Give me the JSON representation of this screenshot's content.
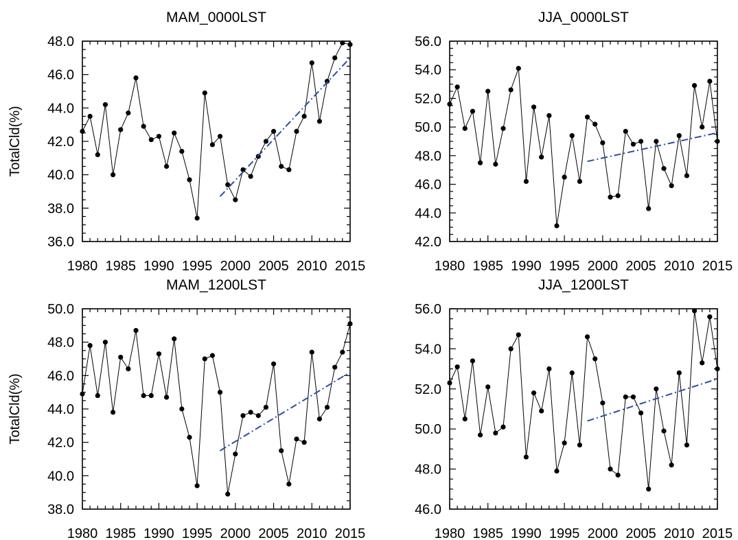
{
  "chart_data": [
    {
      "type": "line",
      "title": "MAM_0000LST",
      "xlabel": "",
      "ylabel": "TotalCld(%)",
      "xlim": [
        1980,
        2015
      ],
      "ylim": [
        36.0,
        48.0
      ],
      "x_ticks": [
        "1980",
        "1985",
        "1990",
        "1995",
        "2000",
        "2005",
        "2010",
        "2015"
      ],
      "y_ticks": [
        "36.0",
        "38.0",
        "40.0",
        "42.0",
        "44.0",
        "46.0",
        "48.0"
      ],
      "line_color": "#000000",
      "trend_color": "#2b4ea0",
      "series": [
        {
          "x": [
            1980,
            1981,
            1982,
            1983,
            1984,
            1985,
            1986,
            1987,
            1988,
            1989,
            1990,
            1991,
            1992,
            1993,
            1994,
            1995,
            1996,
            1997,
            1998,
            1999,
            2000,
            2001,
            2002,
            2003,
            2004,
            2005,
            2006,
            2007,
            2008,
            2009,
            2010,
            2011,
            2012,
            2013,
            2014,
            2015
          ],
          "values": [
            42.6,
            43.5,
            41.2,
            44.2,
            40.0,
            42.7,
            43.7,
            45.8,
            42.9,
            42.1,
            42.3,
            40.5,
            42.5,
            41.4,
            39.7,
            37.4,
            44.9,
            41.8,
            42.3,
            39.4,
            38.5,
            40.3,
            39.9,
            41.1,
            42.0,
            42.6,
            40.5,
            40.3,
            42.6,
            43.5,
            46.7,
            43.2,
            45.6,
            47.0,
            47.9,
            47.8
          ]
        }
      ],
      "trend": {
        "x": [
          1998,
          2015
        ],
        "values": [
          38.7,
          47.0
        ]
      }
    },
    {
      "type": "line",
      "title": "JJA_0000LST",
      "xlabel": "",
      "ylabel": "",
      "xlim": [
        1980,
        2015
      ],
      "ylim": [
        42.0,
        56.0
      ],
      "x_ticks": [
        "1980",
        "1985",
        "1990",
        "1995",
        "2000",
        "2005",
        "2010",
        "2015"
      ],
      "y_ticks": [
        "42.0",
        "44.0",
        "46.0",
        "48.0",
        "50.0",
        "52.0",
        "54.0",
        "56.0"
      ],
      "line_color": "#000000",
      "trend_color": "#2b4ea0",
      "series": [
        {
          "x": [
            1980,
            1981,
            1982,
            1983,
            1984,
            1985,
            1986,
            1987,
            1988,
            1989,
            1990,
            1991,
            1992,
            1993,
            1994,
            1995,
            1996,
            1997,
            1998,
            1999,
            2000,
            2001,
            2002,
            2003,
            2004,
            2005,
            2006,
            2007,
            2008,
            2009,
            2010,
            2011,
            2012,
            2013,
            2014,
            2015
          ],
          "values": [
            51.6,
            52.8,
            49.9,
            51.1,
            47.5,
            52.5,
            47.4,
            49.9,
            52.6,
            54.1,
            46.2,
            51.4,
            47.9,
            50.8,
            43.1,
            46.5,
            49.4,
            46.2,
            50.7,
            50.2,
            48.9,
            45.1,
            45.2,
            49.7,
            48.8,
            49.0,
            44.3,
            49.0,
            47.1,
            45.9,
            49.4,
            46.6,
            52.9,
            50.0,
            53.2,
            49.0
          ]
        }
      ],
      "trend": {
        "x": [
          1998,
          2015
        ],
        "values": [
          47.6,
          49.6
        ]
      }
    },
    {
      "type": "line",
      "title": "MAM_1200LST",
      "xlabel": "",
      "ylabel": "TotalCld(%)",
      "xlim": [
        1980,
        2015
      ],
      "ylim": [
        38.0,
        50.0
      ],
      "x_ticks": [
        "1980",
        "1985",
        "1990",
        "1995",
        "2000",
        "2005",
        "2010",
        "2015"
      ],
      "y_ticks": [
        "38.0",
        "40.0",
        "42.0",
        "44.0",
        "46.0",
        "48.0",
        "50.0"
      ],
      "line_color": "#000000",
      "trend_color": "#2b4ea0",
      "series": [
        {
          "x": [
            1980,
            1981,
            1982,
            1983,
            1984,
            1985,
            1986,
            1987,
            1988,
            1989,
            1990,
            1991,
            1992,
            1993,
            1994,
            1995,
            1996,
            1997,
            1998,
            1999,
            2000,
            2001,
            2002,
            2003,
            2004,
            2005,
            2006,
            2007,
            2008,
            2009,
            2010,
            2011,
            2012,
            2013,
            2014,
            2015
          ],
          "values": [
            44.9,
            47.8,
            44.8,
            48.0,
            43.8,
            47.1,
            46.4,
            48.7,
            44.8,
            44.8,
            47.3,
            44.7,
            48.2,
            44.0,
            42.3,
            39.4,
            47.0,
            47.2,
            45.0,
            38.9,
            41.3,
            43.6,
            43.8,
            43.6,
            44.1,
            46.7,
            41.5,
            39.5,
            42.2,
            42.0,
            47.4,
            43.4,
            44.1,
            46.5,
            47.4,
            49.1
          ]
        }
      ],
      "trend": {
        "x": [
          1998,
          2015
        ],
        "values": [
          41.5,
          46.2
        ]
      }
    },
    {
      "type": "line",
      "title": "JJA_1200LST",
      "xlabel": "",
      "ylabel": "",
      "xlim": [
        1980,
        2015
      ],
      "ylim": [
        46.0,
        56.0
      ],
      "x_ticks": [
        "1980",
        "1985",
        "1990",
        "1995",
        "2000",
        "2005",
        "2010",
        "2015"
      ],
      "y_ticks": [
        "46.0",
        "48.0",
        "50.0",
        "52.0",
        "54.0",
        "56.0"
      ],
      "line_color": "#000000",
      "trend_color": "#2b4ea0",
      "series": [
        {
          "x": [
            1980,
            1981,
            1982,
            1983,
            1984,
            1985,
            1986,
            1987,
            1988,
            1989,
            1990,
            1991,
            1992,
            1993,
            1994,
            1995,
            1996,
            1997,
            1998,
            1999,
            2000,
            2001,
            2002,
            2003,
            2004,
            2005,
            2006,
            2007,
            2008,
            2009,
            2010,
            2011,
            2012,
            2013,
            2014,
            2015
          ],
          "values": [
            52.3,
            53.1,
            50.5,
            53.4,
            49.7,
            52.1,
            49.8,
            50.1,
            54.0,
            54.7,
            48.6,
            51.8,
            50.9,
            53.0,
            47.9,
            49.3,
            52.8,
            49.2,
            54.6,
            53.5,
            51.3,
            48.0,
            47.7,
            51.6,
            51.6,
            50.8,
            47.0,
            52.0,
            49.9,
            48.2,
            52.8,
            49.2,
            55.9,
            53.3,
            55.6,
            53.0
          ]
        }
      ],
      "trend": {
        "x": [
          1998,
          2015
        ],
        "values": [
          50.4,
          52.5
        ]
      }
    }
  ]
}
